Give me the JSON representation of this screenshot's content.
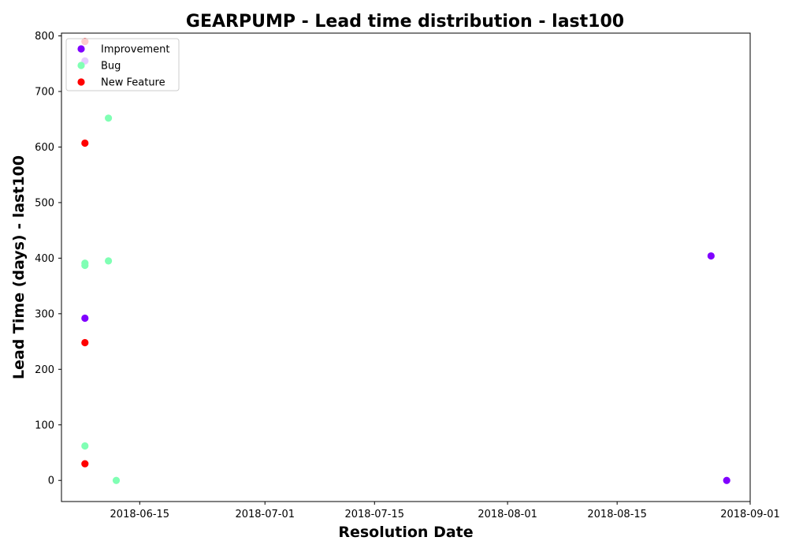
{
  "chart_data": {
    "type": "scatter",
    "title": "GEARPUMP - Lead time distribution - last100",
    "xlabel": "Resolution Date",
    "ylabel": "Lead Time (days) - last100",
    "x_axis_type": "date",
    "xlim": [
      "2018-06-05",
      "2018-09-01"
    ],
    "ylim": [
      -38,
      805
    ],
    "x_ticks": [
      "2018-06-15",
      "2018-07-01",
      "2018-07-15",
      "2018-08-01",
      "2018-08-15",
      "2018-09-01"
    ],
    "y_ticks": [
      0,
      100,
      200,
      300,
      400,
      500,
      600,
      700,
      800
    ],
    "grid": false,
    "legend": {
      "position": "top-left",
      "entries": [
        "Improvement",
        "Bug",
        "New Feature"
      ]
    },
    "series": [
      {
        "name": "Improvement",
        "color": "#8000ff",
        "points": [
          {
            "x": "2018-06-08",
            "y": 755
          },
          {
            "x": "2018-06-08",
            "y": 292
          },
          {
            "x": "2018-08-27",
            "y": 404
          },
          {
            "x": "2018-08-29",
            "y": 0
          }
        ]
      },
      {
        "name": "Bug",
        "color": "#80ffb4",
        "points": [
          {
            "x": "2018-06-11",
            "y": 652
          },
          {
            "x": "2018-06-08",
            "y": 391
          },
          {
            "x": "2018-06-08",
            "y": 387
          },
          {
            "x": "2018-06-11",
            "y": 395
          },
          {
            "x": "2018-06-08",
            "y": 62
          },
          {
            "x": "2018-06-12",
            "y": 0
          }
        ]
      },
      {
        "name": "New Feature",
        "color": "#ff0000",
        "points": [
          {
            "x": "2018-06-08",
            "y": 790
          },
          {
            "x": "2018-06-08",
            "y": 607
          },
          {
            "x": "2018-06-08",
            "y": 248
          },
          {
            "x": "2018-06-08",
            "y": 30
          }
        ]
      }
    ]
  }
}
